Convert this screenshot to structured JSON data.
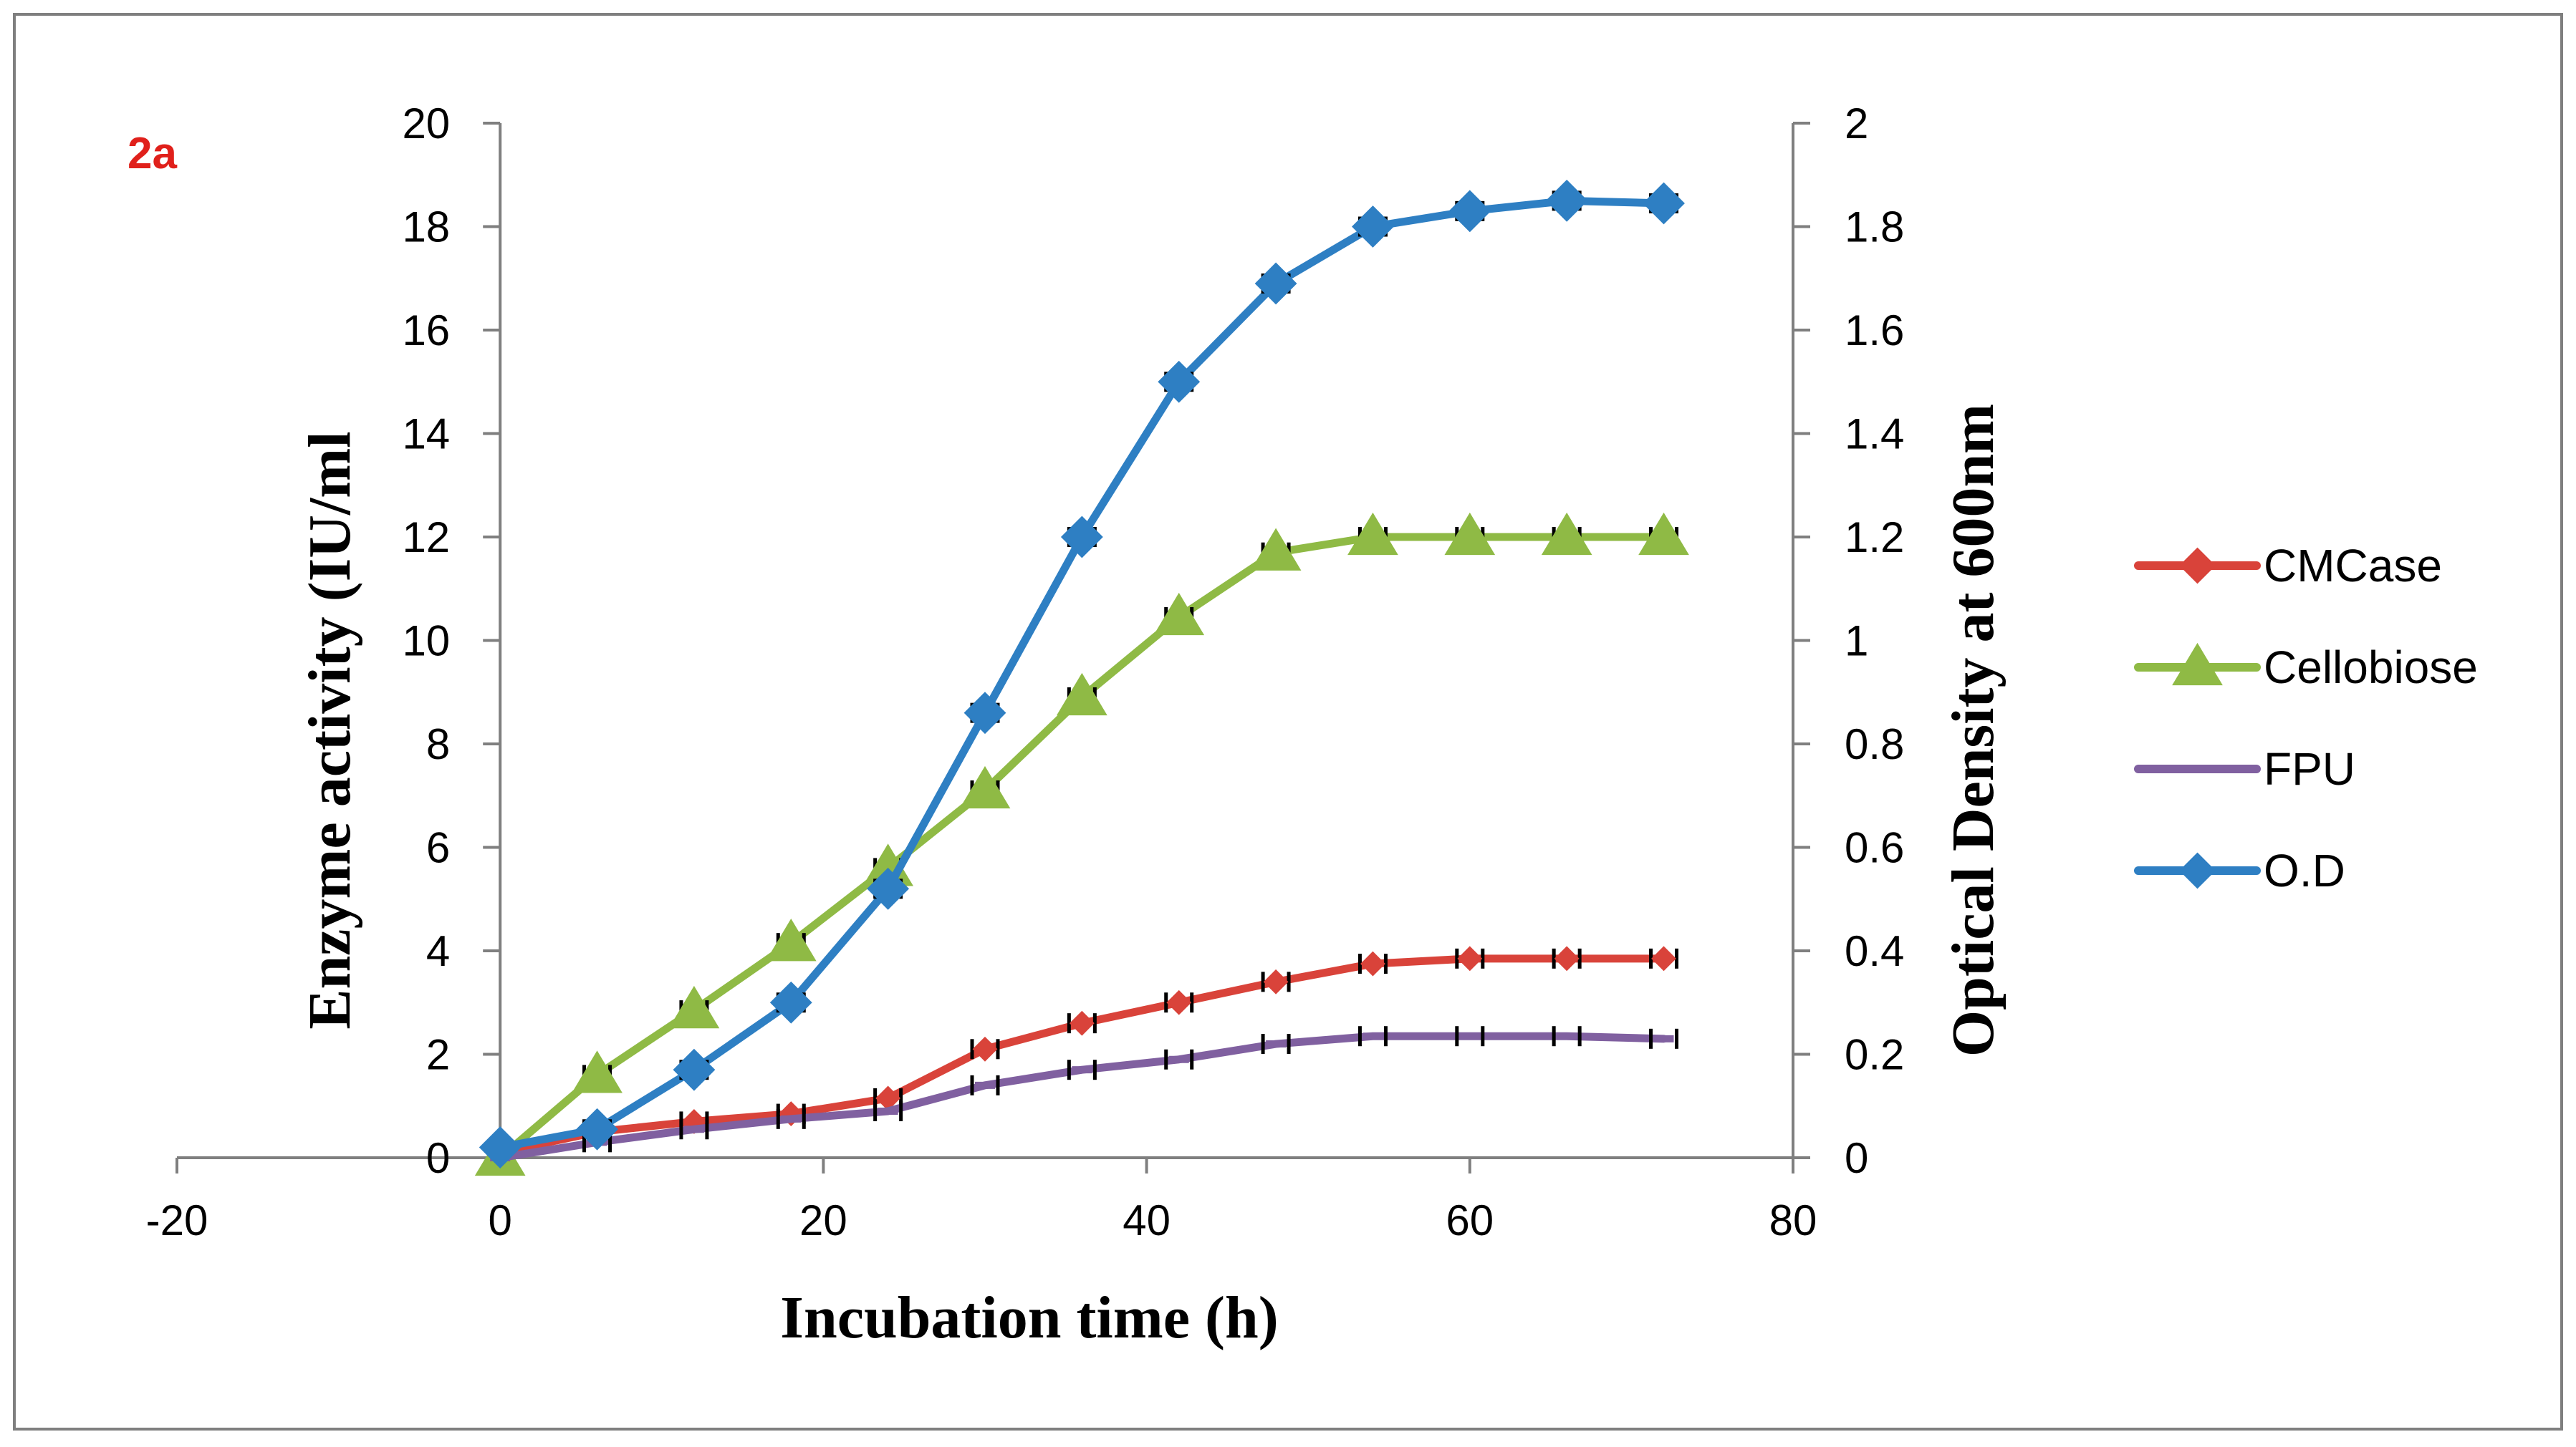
{
  "chart_data": {
    "type": "line",
    "panel_label": "2a",
    "xlabel": "Incubation time (h)",
    "ylabel_left": "Enzyme activity (IU/ml",
    "ylabel_right": "Optical Density at 600nm",
    "xlim": [
      -20,
      80
    ],
    "ylim_left": [
      0,
      20
    ],
    "ylim_right": [
      0,
      2
    ],
    "x_ticks": [
      "-20",
      "0",
      "20",
      "40",
      "60",
      "80"
    ],
    "y_left_ticks": [
      "0",
      "2",
      "4",
      "6",
      "8",
      "10",
      "12",
      "14",
      "16",
      "18",
      "20"
    ],
    "y_right_ticks": [
      "0",
      "0.2",
      "0.4",
      "0.6",
      "0.8",
      "1",
      "1.2",
      "1.4",
      "1.6",
      "1.8",
      "2"
    ],
    "x": [
      0,
      6,
      12,
      18,
      24,
      30,
      36,
      42,
      48,
      54,
      60,
      66,
      72
    ],
    "legend_position": "right",
    "grid": false,
    "series": [
      {
        "name": "CMCase",
        "axis": "left",
        "marker": "diamond",
        "color": "#d9433a",
        "values": [
          0.1,
          0.5,
          0.7,
          0.85,
          1.15,
          2.1,
          2.6,
          3.0,
          3.4,
          3.75,
          3.85,
          3.85,
          3.85
        ]
      },
      {
        "name": "Cellobiose",
        "axis": "left",
        "marker": "triangle",
        "color": "#8fba45",
        "values": [
          0.0,
          1.6,
          2.85,
          4.15,
          5.6,
          7.1,
          8.9,
          10.45,
          11.7,
          12.0,
          12.0,
          12.0,
          12.0
        ]
      },
      {
        "name": "FPU",
        "axis": "left",
        "marker": "dash",
        "color": "#8060a0",
        "values": [
          0.0,
          0.3,
          0.55,
          0.75,
          0.9,
          1.4,
          1.7,
          1.9,
          2.2,
          2.35,
          2.35,
          2.35,
          2.3
        ]
      },
      {
        "name": "O.D",
        "axis": "right",
        "marker": "diamond",
        "color": "#2e7fc3",
        "values": [
          0.02,
          0.055,
          0.17,
          0.3,
          0.52,
          0.86,
          1.2,
          1.5,
          1.69,
          1.8,
          1.83,
          1.85,
          1.845
        ]
      }
    ]
  }
}
